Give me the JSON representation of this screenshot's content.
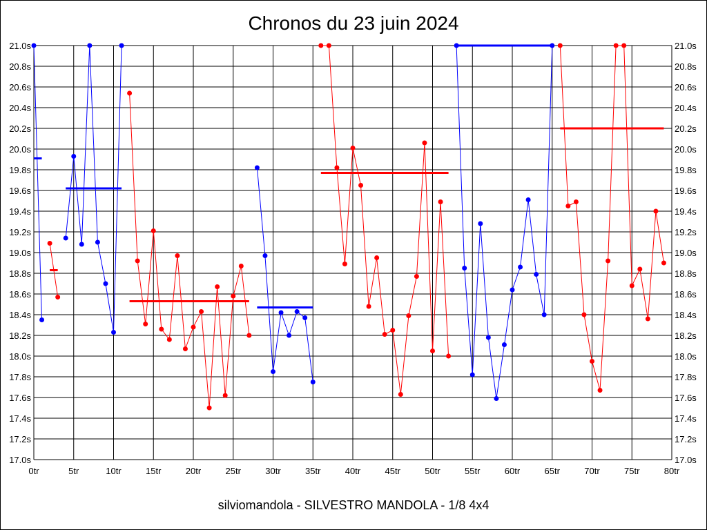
{
  "title": "Chronos du 23 juin 2024",
  "footer": "silviomandola - SILVESTRO MANDOLA - 1/8 4x4",
  "colors": {
    "red": "#ff0000",
    "blue": "#0000ff",
    "grid": "#000000"
  },
  "chart_data": {
    "type": "line",
    "title": "Chronos du 23 juin 2024",
    "xlabel": "",
    "ylabel": "",
    "xlim": [
      0,
      80
    ],
    "ylim": [
      17.0,
      21.0
    ],
    "grid": true,
    "x_ticks": [
      {
        "value": 0,
        "label": "0tr"
      },
      {
        "value": 5,
        "label": "5tr"
      },
      {
        "value": 10,
        "label": "10tr"
      },
      {
        "value": 15,
        "label": "15tr"
      },
      {
        "value": 20,
        "label": "20tr"
      },
      {
        "value": 25,
        "label": "25tr"
      },
      {
        "value": 30,
        "label": "30tr"
      },
      {
        "value": 35,
        "label": "35tr"
      },
      {
        "value": 40,
        "label": "40tr"
      },
      {
        "value": 45,
        "label": "45tr"
      },
      {
        "value": 50,
        "label": "50tr"
      },
      {
        "value": 55,
        "label": "55tr"
      },
      {
        "value": 60,
        "label": "60tr"
      },
      {
        "value": 65,
        "label": "65tr"
      },
      {
        "value": 70,
        "label": "70tr"
      },
      {
        "value": 75,
        "label": "75tr"
      },
      {
        "value": 80,
        "label": "80tr"
      }
    ],
    "y_ticks": [
      {
        "value": 21.0,
        "label": "21.0s"
      },
      {
        "value": 20.8,
        "label": "20.8s"
      },
      {
        "value": 20.6,
        "label": "20.6s"
      },
      {
        "value": 20.4,
        "label": "20.4s"
      },
      {
        "value": 20.2,
        "label": "20.2s"
      },
      {
        "value": 20.0,
        "label": "20.0s"
      },
      {
        "value": 19.8,
        "label": "19.8s"
      },
      {
        "value": 19.6,
        "label": "19.6s"
      },
      {
        "value": 19.4,
        "label": "19.4s"
      },
      {
        "value": 19.2,
        "label": "19.2s"
      },
      {
        "value": 19.0,
        "label": "19.0s"
      },
      {
        "value": 18.8,
        "label": "18.8s"
      },
      {
        "value": 18.6,
        "label": "18.6s"
      },
      {
        "value": 18.4,
        "label": "18.4s"
      },
      {
        "value": 18.2,
        "label": "18.2s"
      },
      {
        "value": 18.0,
        "label": "18.0s"
      },
      {
        "value": 17.8,
        "label": "17.8s"
      },
      {
        "value": 17.6,
        "label": "17.6s"
      },
      {
        "value": 17.4,
        "label": "17.4s"
      },
      {
        "value": 17.2,
        "label": "17.2s"
      },
      {
        "value": 17.0,
        "label": "17.0s"
      }
    ],
    "segments": [
      {
        "color": "blue",
        "points": [
          [
            0,
            21.0
          ],
          [
            1,
            18.35
          ]
        ],
        "average": 19.91
      },
      {
        "color": "red",
        "points": [
          [
            2,
            19.09
          ],
          [
            3,
            18.57
          ]
        ],
        "average": 18.83
      },
      {
        "color": "blue",
        "points": [
          [
            4,
            19.14
          ],
          [
            5,
            19.93
          ],
          [
            6,
            19.08
          ],
          [
            7,
            21.0
          ],
          [
            8,
            19.1
          ],
          [
            9,
            18.7
          ],
          [
            10,
            18.23
          ],
          [
            11,
            21.0
          ]
        ],
        "average": 19.62
      },
      {
        "color": "red",
        "points": [
          [
            12,
            20.54
          ],
          [
            13,
            18.92
          ],
          [
            14,
            18.31
          ],
          [
            15,
            19.21
          ],
          [
            16,
            18.26
          ],
          [
            17,
            18.16
          ],
          [
            18,
            18.97
          ],
          [
            19,
            18.07
          ],
          [
            20,
            18.28
          ],
          [
            21,
            18.43
          ],
          [
            22,
            17.5
          ],
          [
            23,
            18.67
          ],
          [
            24,
            17.62
          ],
          [
            25,
            18.58
          ],
          [
            26,
            18.87
          ],
          [
            27,
            18.2
          ]
        ],
        "average": 18.53
      },
      {
        "color": "blue",
        "points": [
          [
            28,
            19.82
          ],
          [
            29,
            18.97
          ],
          [
            30,
            17.85
          ],
          [
            31,
            18.42
          ],
          [
            32,
            18.2
          ],
          [
            33,
            18.43
          ],
          [
            34,
            18.37
          ],
          [
            35,
            17.75
          ]
        ],
        "average": 18.47
      },
      {
        "color": "red",
        "points": [
          [
            36,
            21.0
          ],
          [
            37,
            21.0
          ],
          [
            38,
            19.82
          ],
          [
            39,
            18.89
          ],
          [
            40,
            20.01
          ],
          [
            41,
            19.65
          ],
          [
            42,
            18.48
          ],
          [
            43,
            18.95
          ],
          [
            44,
            18.21
          ],
          [
            45,
            18.25
          ],
          [
            46,
            17.63
          ],
          [
            47,
            18.39
          ],
          [
            48,
            18.77
          ],
          [
            49,
            20.06
          ],
          [
            50,
            18.05
          ],
          [
            51,
            19.49
          ],
          [
            52,
            18.0
          ]
        ],
        "average": 19.77
      },
      {
        "color": "blue",
        "points": [
          [
            53,
            21.0
          ],
          [
            54,
            18.85
          ],
          [
            55,
            17.82
          ],
          [
            56,
            19.28
          ],
          [
            57,
            18.18
          ],
          [
            58,
            17.59
          ],
          [
            59,
            18.11
          ],
          [
            60,
            18.64
          ],
          [
            61,
            18.86
          ],
          [
            62,
            19.51
          ],
          [
            63,
            18.79
          ],
          [
            64,
            18.4
          ],
          [
            65,
            21.0
          ]
        ],
        "average": 21.0
      },
      {
        "color": "red",
        "points": [
          [
            66,
            21.0
          ],
          [
            67,
            19.45
          ],
          [
            68,
            19.49
          ],
          [
            69,
            18.4
          ],
          [
            70,
            17.95
          ],
          [
            71,
            17.67
          ],
          [
            72,
            18.92
          ],
          [
            73,
            21.0
          ],
          [
            74,
            21.0
          ],
          [
            75,
            18.68
          ],
          [
            76,
            18.84
          ],
          [
            77,
            18.36
          ],
          [
            78,
            19.4
          ],
          [
            79,
            18.9
          ]
        ],
        "average": 20.2
      }
    ]
  }
}
